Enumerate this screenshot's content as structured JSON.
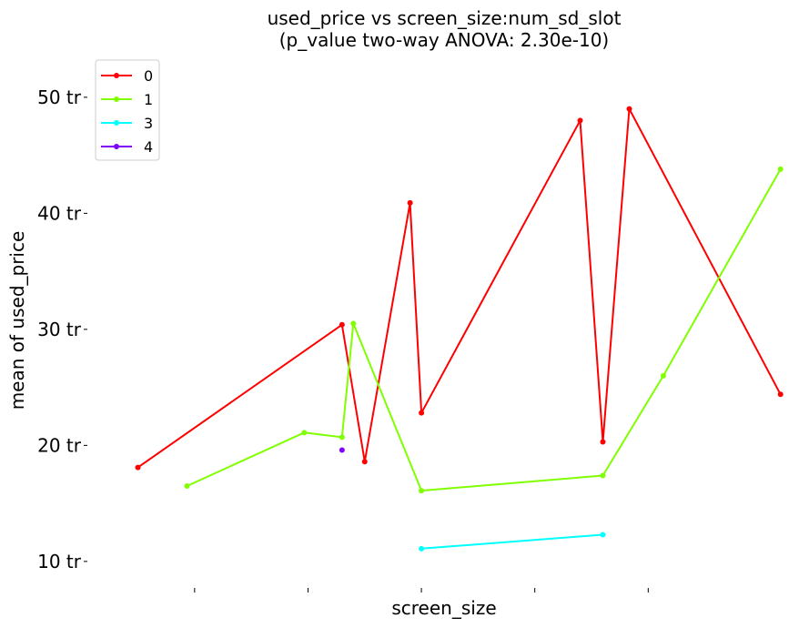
{
  "chart_data": {
    "type": "line",
    "title_line1": "used_price vs screen_size:num_sd_slot",
    "title_line2": "(p_value two-way ANOVA: 2.30e-10)",
    "xlabel": "screen_size",
    "ylabel": "mean of used_price",
    "y_tick_labels": [
      "10 tr",
      "20 tr",
      "30 tr",
      "40 tr",
      "50 tr"
    ],
    "y_tick_values": [
      10,
      20,
      30,
      40,
      50
    ],
    "ylim": [
      7.4,
      52.5
    ],
    "xlim": [
      0.5,
      18.7
    ],
    "x_ticks": [
      3,
      6,
      9,
      12,
      15
    ],
    "grid": false,
    "legend_position": "top-left",
    "series": [
      {
        "name": "0",
        "color": "#ff0000",
        "x": [
          1.5,
          6.9,
          7.5,
          8.7,
          9.0,
          13.2,
          13.8,
          14.5,
          18.5
        ],
        "y": [
          18.1,
          30.4,
          18.6,
          40.9,
          22.8,
          48.0,
          20.3,
          49.0,
          24.4
        ]
      },
      {
        "name": "1",
        "color": "#80ff00",
        "x": [
          2.8,
          5.9,
          6.9,
          7.2,
          9.0,
          13.8,
          15.4,
          18.5
        ],
        "y": [
          16.5,
          21.1,
          20.7,
          30.5,
          16.1,
          17.4,
          26.0,
          43.8
        ]
      },
      {
        "name": "3",
        "color": "#00ffff",
        "x": [
          9.0,
          13.8
        ],
        "y": [
          11.1,
          12.3
        ]
      },
      {
        "name": "4",
        "color": "#8000ff",
        "x": [
          6.9
        ],
        "y": [
          19.6
        ]
      }
    ]
  }
}
